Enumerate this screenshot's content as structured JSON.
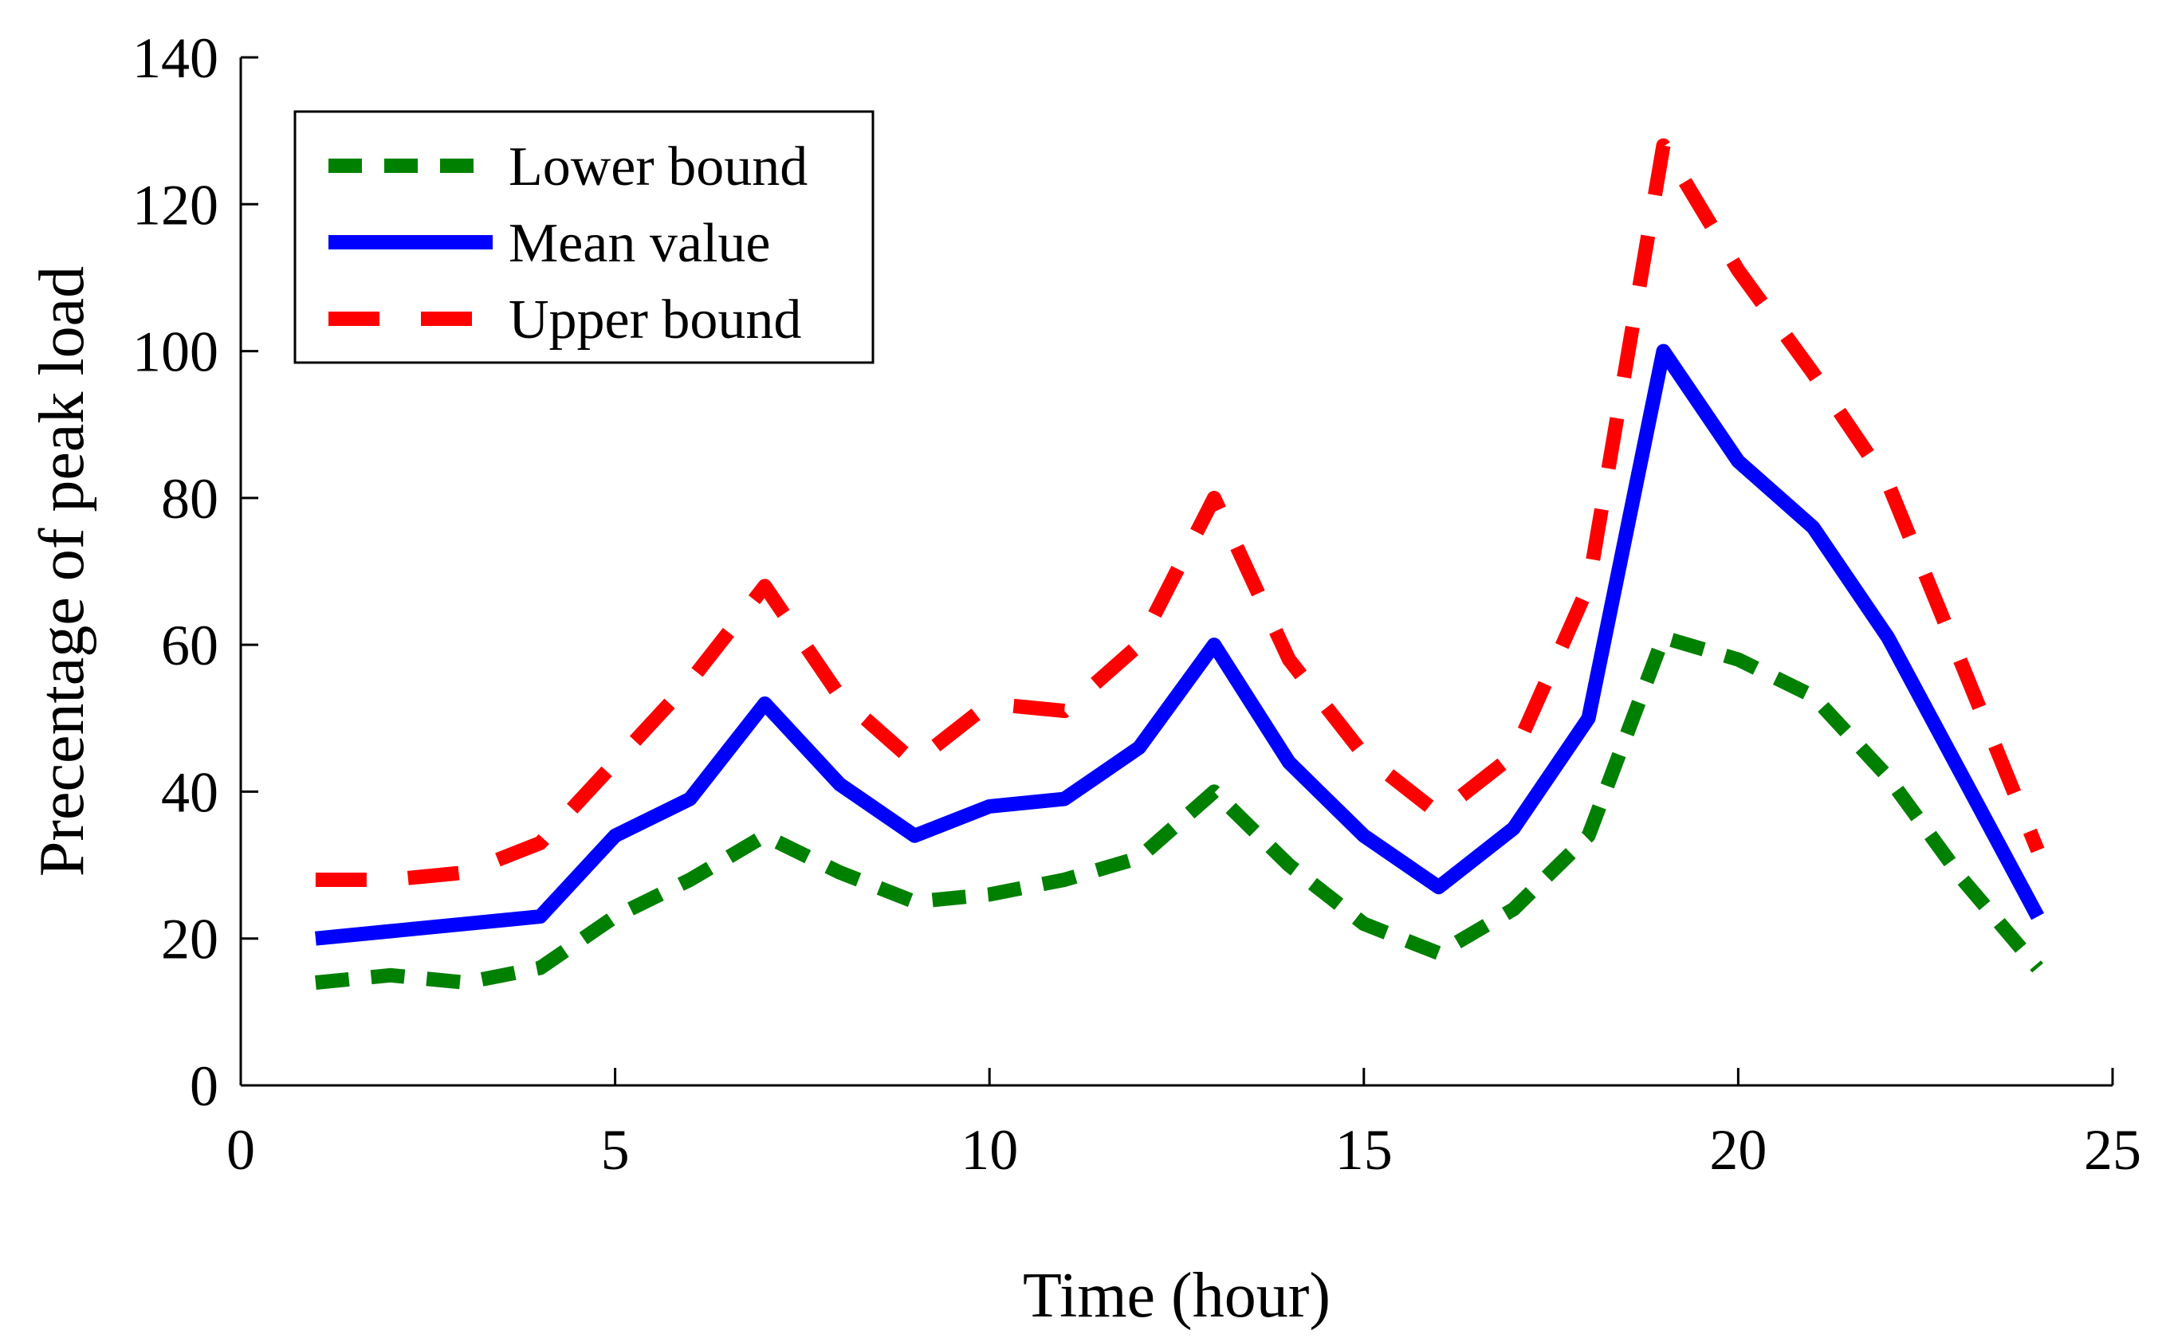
{
  "chart_data": {
    "type": "line",
    "title": "",
    "xlabel": "Time (hour)",
    "ylabel": "Precentage of peak load",
    "xlim": [
      0,
      25
    ],
    "ylim": [
      0,
      140
    ],
    "xticks": [
      0,
      5,
      10,
      15,
      20,
      25
    ],
    "yticks": [
      0,
      20,
      40,
      60,
      80,
      100,
      120,
      140
    ],
    "xtick_labels": [
      "0",
      "5",
      "10",
      "15",
      "20",
      "25"
    ],
    "ytick_labels": [
      "0",
      "20",
      "40",
      "60",
      "80",
      "100",
      "120",
      "140"
    ],
    "grid": false,
    "legend_position": "top-left",
    "x": [
      1,
      2,
      3,
      4,
      5,
      6,
      7,
      8,
      9,
      10,
      11,
      12,
      13,
      14,
      15,
      16,
      17,
      18,
      19,
      20,
      21,
      22,
      23,
      24
    ],
    "series": [
      {
        "name": "Lower bound",
        "color": "#008000",
        "style": "dashed",
        "values": [
          14,
          15,
          14,
          16,
          23,
          28,
          34,
          29,
          25,
          26,
          28,
          31,
          40,
          30,
          22,
          18,
          24,
          34,
          61,
          58,
          53,
          42,
          28,
          16
        ]
      },
      {
        "name": "Mean value",
        "color": "#0000ff",
        "style": "solid",
        "values": [
          20,
          21,
          22,
          23,
          34,
          39,
          52,
          41,
          34,
          38,
          39,
          46,
          60,
          44,
          34,
          27,
          35,
          50,
          100,
          85,
          76,
          61,
          42,
          23
        ]
      },
      {
        "name": "Upper bound",
        "color": "#ff0000",
        "style": "longdash",
        "values": [
          28,
          28,
          29,
          33,
          44,
          55,
          68,
          53,
          44,
          52,
          51,
          60,
          80,
          58,
          45,
          37,
          45,
          68,
          128,
          111,
          97,
          82,
          57,
          32
        ]
      }
    ]
  }
}
